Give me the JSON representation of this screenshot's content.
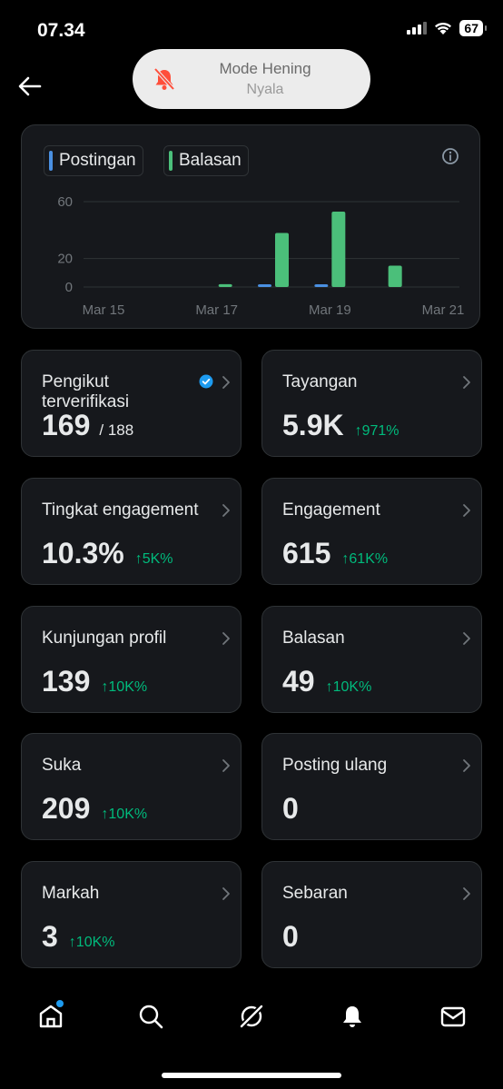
{
  "status_bar": {
    "time": "07.34",
    "battery": "67"
  },
  "toast": {
    "title": "Mode Hening",
    "subtitle": "Nyala"
  },
  "legend": [
    {
      "label": "Postingan",
      "color": "#4a90e2"
    },
    {
      "label": "Balasan",
      "color": "#4bbf7a"
    }
  ],
  "chart_data": {
    "type": "bar",
    "categories": [
      "Mar 15",
      "Mar 16",
      "Mar 17",
      "Mar 18",
      "Mar 19",
      "Mar 20",
      "Mar 21"
    ],
    "x_tick_labels": [
      "Mar 15",
      "Mar 17",
      "Mar 19",
      "Mar 21"
    ],
    "y_ticks": [
      0,
      20,
      60
    ],
    "ylim": [
      0,
      60
    ],
    "series": [
      {
        "name": "Postingan",
        "color": "#4a90e2",
        "values": [
          0,
          0,
          0,
          1,
          1,
          0,
          0
        ]
      },
      {
        "name": "Balasan",
        "color": "#4bbf7a",
        "values": [
          0,
          0,
          2,
          38,
          53,
          15,
          0
        ]
      }
    ]
  },
  "metrics": [
    {
      "label": "Pengikut terverifikasi",
      "value": "169",
      "sub": "/ 188",
      "delta": "",
      "verified": true
    },
    {
      "label": "Tayangan",
      "value": "5.9K",
      "sub": "",
      "delta": "↑971%"
    },
    {
      "label": "Tingkat engagement",
      "value": "10.3%",
      "sub": "",
      "delta": "↑5K%"
    },
    {
      "label": "Engagement",
      "value": "615",
      "sub": "",
      "delta": "↑61K%"
    },
    {
      "label": "Kunjungan profil",
      "value": "139",
      "sub": "",
      "delta": "↑10K%"
    },
    {
      "label": "Balasan",
      "value": "49",
      "sub": "",
      "delta": "↑10K%"
    },
    {
      "label": "Suka",
      "value": "209",
      "sub": "",
      "delta": "↑10K%"
    },
    {
      "label": "Posting ulang",
      "value": "0",
      "sub": "",
      "delta": ""
    },
    {
      "label": "Markah",
      "value": "3",
      "sub": "",
      "delta": "↑10K%"
    },
    {
      "label": "Sebaran",
      "value": "0",
      "sub": "",
      "delta": ""
    }
  ],
  "tabs": [
    "home-icon",
    "search-icon",
    "grok-icon",
    "notifications-icon",
    "messages-icon"
  ]
}
